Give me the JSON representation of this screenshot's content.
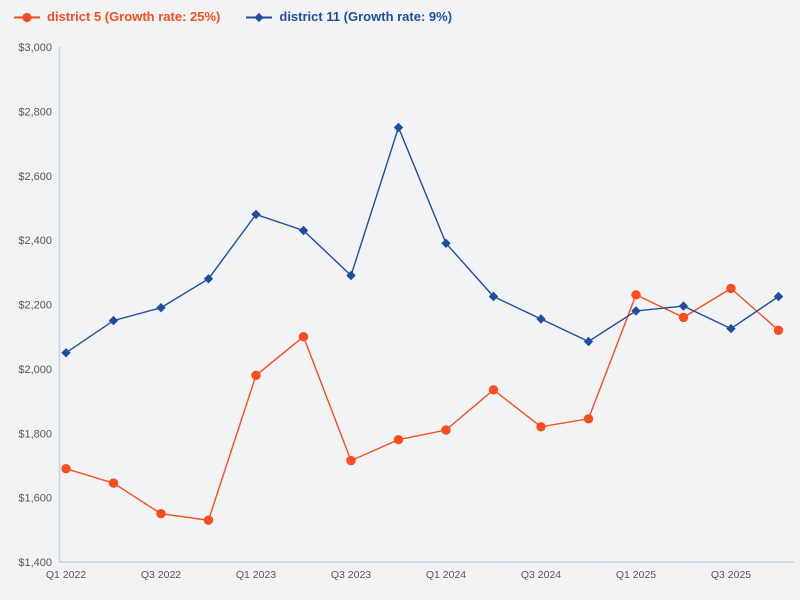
{
  "colors": {
    "background": "#f2f3f5",
    "axis": "#c7d2e6",
    "tick_text": "#54575f",
    "district5_orange": "#f94d1f",
    "district11_blue": "#1f4e9c"
  },
  "legend": [
    {
      "label": "district 5 (Growth rate: 25%)",
      "color": "#f94d1f",
      "marker": "circle"
    },
    {
      "label": "district 11 (Growth rate: 9%)",
      "color": "#1f4e9c",
      "marker": "diamond"
    }
  ],
  "chart_data": {
    "type": "line",
    "categories": [
      "Q1 2022",
      "Q2 2022",
      "Q3 2022",
      "Q4 2022",
      "Q1 2023",
      "Q2 2023",
      "Q3 2023",
      "Q4 2023",
      "Q1 2024",
      "Q2 2024",
      "Q3 2024",
      "Q4 2024",
      "Q1 2025",
      "Q2 2025",
      "Q3 2025",
      "Q4 2025"
    ],
    "x_tick_labels": [
      "Q1 2022",
      "Q3 2022",
      "Q1 2023",
      "Q3 2023",
      "Q1 2024",
      "Q3 2024",
      "Q1 2025",
      "Q3 2025"
    ],
    "series": [
      {
        "name": "district 5 (Growth rate: 25%)",
        "color": "#f94d1f",
        "marker": "circle",
        "values": [
          1690,
          1645,
          1550,
          1530,
          1980,
          2100,
          1715,
          1780,
          1810,
          1935,
          1820,
          1845,
          2230,
          2160,
          2250,
          2120
        ]
      },
      {
        "name": "district 11 (Growth rate: 9%)",
        "color": "#1f4e9c",
        "marker": "diamond",
        "values": [
          2050,
          2150,
          2190,
          2280,
          2480,
          2430,
          2290,
          2750,
          2390,
          2225,
          2155,
          2085,
          2180,
          2195,
          2125,
          2225
        ]
      }
    ],
    "title": "",
    "xlabel": "",
    "ylabel": "",
    "ylim": [
      1400,
      3000
    ],
    "y_tick_step": 200,
    "y_tick_labels": [
      "$1,400",
      "$1,600",
      "$1,800",
      "$2,000",
      "$2,200",
      "$2,400",
      "$2,600",
      "$2,800",
      "$3,000"
    ],
    "grid": false,
    "legend_position": "top-left"
  }
}
